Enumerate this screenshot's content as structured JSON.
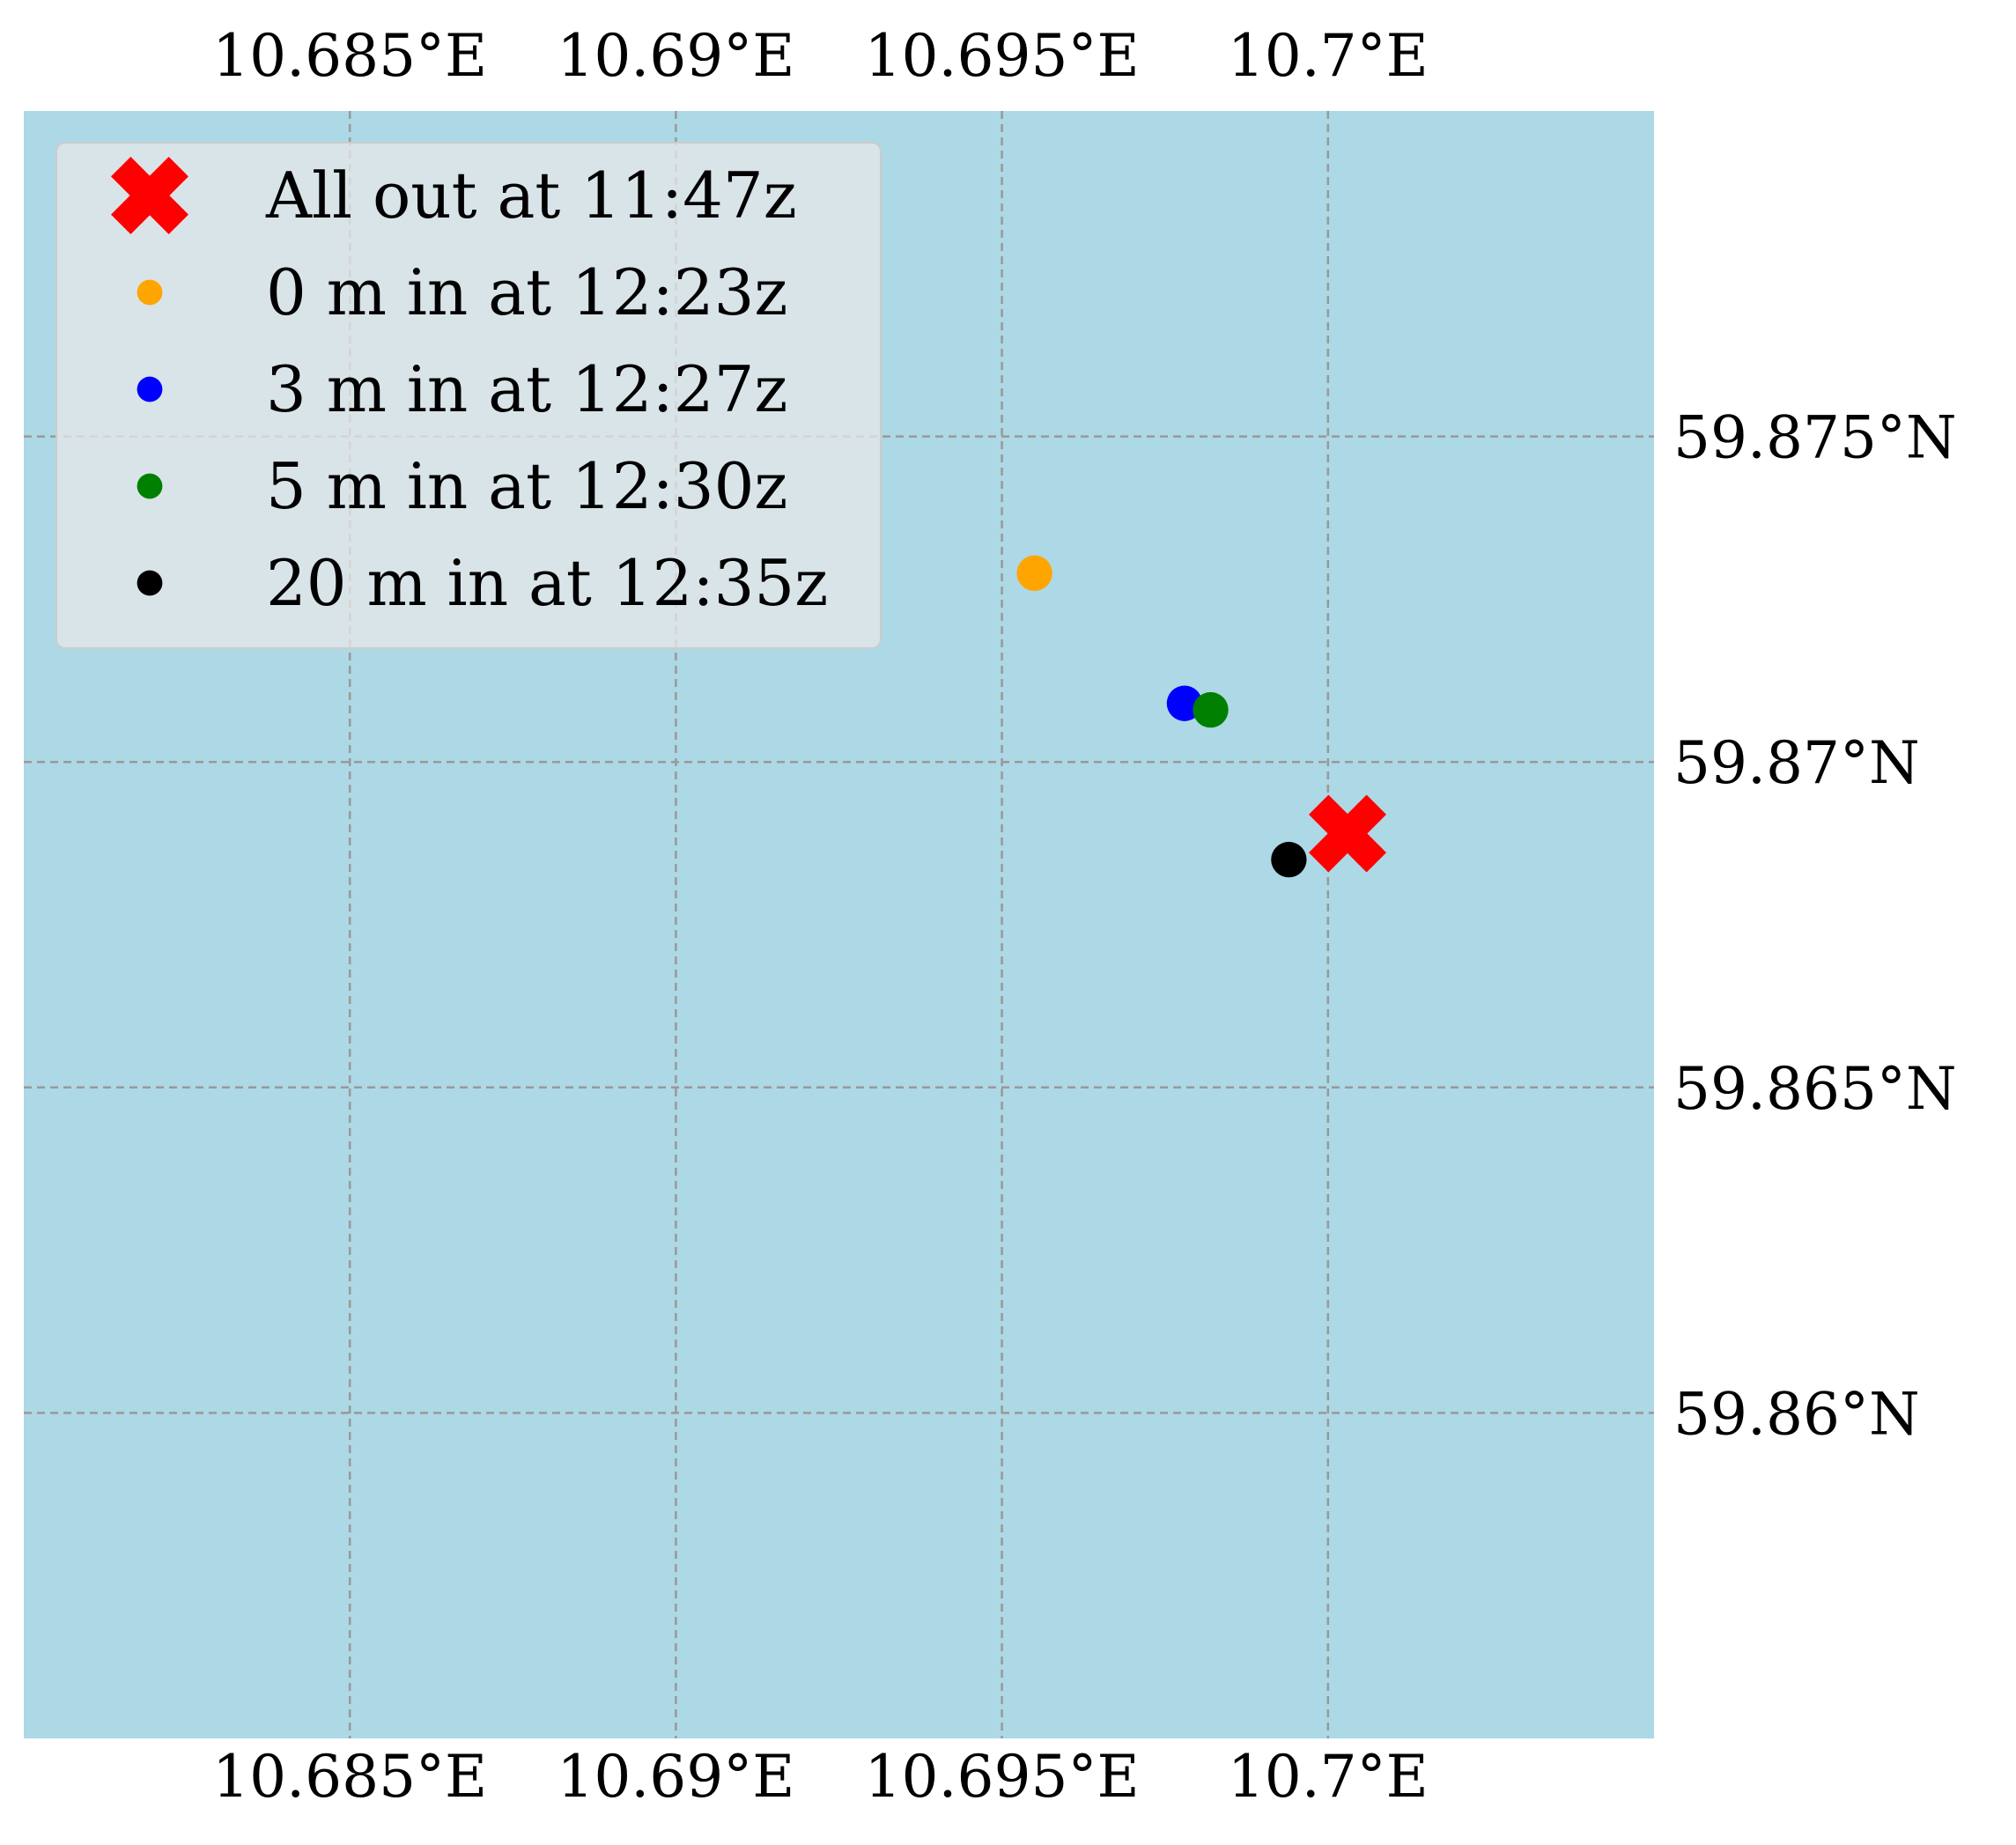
{
  "chart_data": {
    "type": "scatter",
    "title": "",
    "xlabel": "",
    "ylabel": "",
    "xlim": [
      10.68,
      10.705
    ],
    "ylim": [
      59.855,
      59.88
    ],
    "grid": true,
    "background_color": "#add8e6",
    "grid_color": "#999999",
    "x_ticks": [
      {
        "value": 10.685,
        "label": "10.685°E"
      },
      {
        "value": 10.69,
        "label": "10.69°E"
      },
      {
        "value": 10.695,
        "label": "10.695°E"
      },
      {
        "value": 10.7,
        "label": "10.7°E"
      }
    ],
    "y_ticks": [
      {
        "value": 59.875,
        "label": "59.875°N"
      },
      {
        "value": 59.87,
        "label": "59.87°N"
      },
      {
        "value": 59.865,
        "label": "59.865°N"
      },
      {
        "value": 59.86,
        "label": "59.86°N"
      }
    ],
    "legend_position": "top-left",
    "series": [
      {
        "name": "All out at 11:47z",
        "marker": "X",
        "color": "#ff0000",
        "x": 10.7003,
        "y": 59.8689
      },
      {
        "name": "0 m in at 12:23z",
        "marker": "o",
        "color": "#ffa500",
        "x": 10.6955,
        "y": 59.8729
      },
      {
        "name": "3 m in at 12:27z",
        "marker": "o",
        "color": "#0000ff",
        "x": 10.6978,
        "y": 59.8709
      },
      {
        "name": "5 m in at 12:30z",
        "marker": "o",
        "color": "#008000",
        "x": 10.6982,
        "y": 59.8708
      },
      {
        "name": "20 m in at 12:35z",
        "marker": "o",
        "color": "#000000",
        "x": 10.6994,
        "y": 59.8685
      }
    ]
  }
}
